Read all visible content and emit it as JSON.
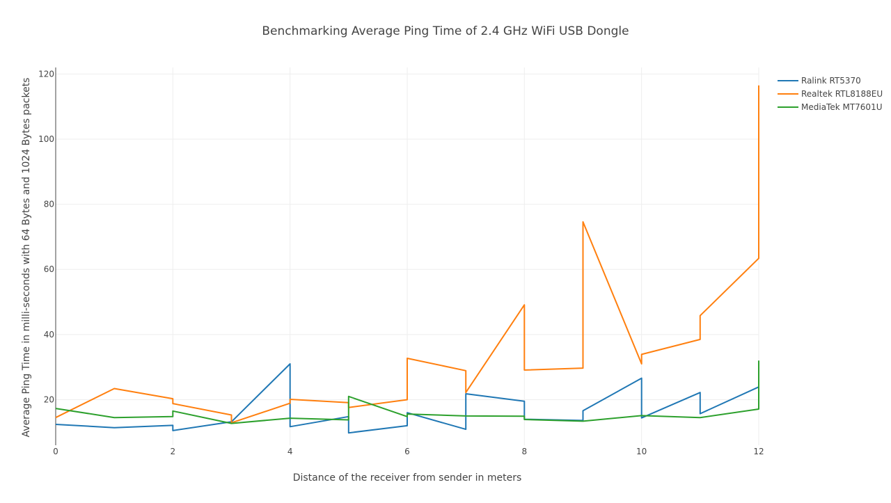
{
  "chart_data": {
    "type": "line",
    "title": "Benchmarking Average Ping Time of 2.4 GHz WiFi USB Dongle",
    "xlabel": "Distance of the receiver from sender in meters",
    "ylabel": "Average Ping Time in milli-seconds with 64 Bytes and 1024 Bytes packets",
    "xlim": [
      0,
      12
    ],
    "ylim": [
      6,
      122
    ],
    "xticks": [
      0,
      2,
      4,
      6,
      8,
      10,
      12
    ],
    "yticks": [
      20,
      40,
      60,
      80,
      100,
      120
    ],
    "grid": true,
    "legend_position": "top-right",
    "series": [
      {
        "name": "Ralink RT5370",
        "color": "#1f77b4",
        "x": [
          0,
          1,
          2,
          2,
          3,
          4,
          4,
          5,
          5,
          6,
          6,
          7,
          7,
          8,
          8,
          9,
          9,
          10,
          10,
          11,
          11,
          12
        ],
        "y": [
          12.4,
          11.4,
          12.1,
          10.5,
          13.2,
          31.0,
          11.7,
          14.8,
          9.8,
          12.0,
          16.0,
          10.9,
          21.8,
          19.5,
          14.0,
          13.6,
          16.6,
          26.6,
          14.4,
          22.2,
          15.7,
          23.9
        ]
      },
      {
        "name": "Realtek RTL8188EU",
        "color": "#ff7f0e",
        "x": [
          0,
          1,
          2,
          2,
          3,
          3,
          4,
          4,
          5,
          5,
          6,
          6,
          7,
          7,
          8,
          8,
          9,
          9,
          10,
          10,
          11,
          11,
          12,
          12
        ],
        "y": [
          14.5,
          23.4,
          20.3,
          18.8,
          15.3,
          12.9,
          18.9,
          20.1,
          19.1,
          17.6,
          20.0,
          32.7,
          28.9,
          22.2,
          49.1,
          29.1,
          29.7,
          74.6,
          31.0,
          33.9,
          38.5,
          45.8,
          63.4,
          116.5
        ]
      },
      {
        "name": "MediaTek MT7601U",
        "color": "#2ca02c",
        "x": [
          0,
          1,
          2,
          2,
          3,
          4,
          5,
          5,
          6,
          6,
          7,
          8,
          8,
          9,
          10,
          11,
          12,
          12
        ],
        "y": [
          17.3,
          14.5,
          14.8,
          16.5,
          12.7,
          14.3,
          13.8,
          21.0,
          14.8,
          15.6,
          15.0,
          14.9,
          13.9,
          13.4,
          15.1,
          14.5,
          17.1,
          32.0
        ]
      }
    ]
  }
}
